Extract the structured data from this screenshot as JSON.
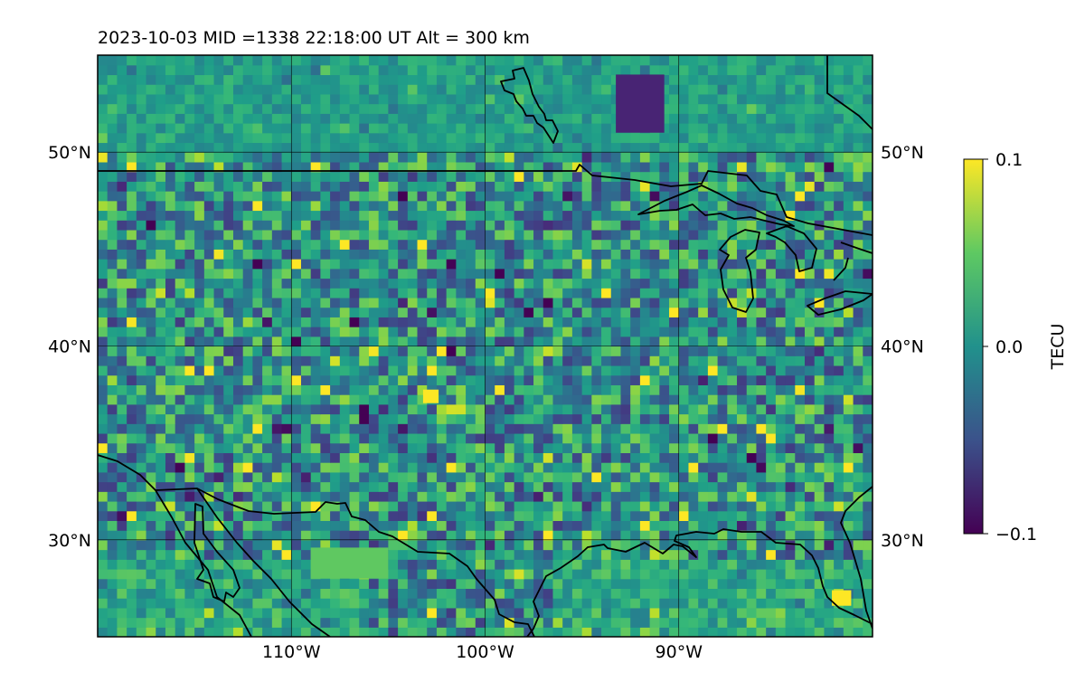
{
  "title": "2023-10-03  MID =1338    22:18:00  UT  Alt = 300 km",
  "map": {
    "lon_range": [
      -120,
      -80
    ],
    "lat_range": [
      25,
      55
    ],
    "projection": "plate-carree",
    "gridlines": true,
    "lat_ticks": [
      {
        "value": 50,
        "label": "50°N"
      },
      {
        "value": 40,
        "label": "40°N"
      },
      {
        "value": 30,
        "label": "30°N"
      }
    ],
    "lon_ticks": [
      {
        "value": -110,
        "label": "110°W"
      },
      {
        "value": -100,
        "label": "100°W"
      },
      {
        "value": -90,
        "label": "90°W"
      }
    ],
    "lat_labels_both_sides": true,
    "colormap": "viridis",
    "cell_deg": 0.5,
    "anomalies": [
      {
        "name": "dark-low-ontario",
        "lon": -92,
        "lat": 52.5,
        "w_deg": 2.5,
        "h_deg": 3,
        "value": -0.08
      },
      {
        "name": "high-kansas",
        "lon": -102.8,
        "lat": 37.4,
        "w_deg": 0.8,
        "h_deg": 0.7,
        "value": 0.1
      },
      {
        "name": "high-mexico-patch",
        "lon": -107,
        "lat": 28.8,
        "w_deg": 4,
        "h_deg": 1.6,
        "value": 0.05
      },
      {
        "name": "high-florida",
        "lon": -81.6,
        "lat": 27,
        "w_deg": 1,
        "h_deg": 0.8,
        "value": 0.1
      }
    ]
  },
  "colorbar": {
    "label": "TECU",
    "min": -0.1,
    "max": 0.1,
    "ticks": [
      {
        "value": 0.1,
        "label": "0.1"
      },
      {
        "value": 0.0,
        "label": "0.0"
      },
      {
        "value": -0.1,
        "label": "−0.1"
      }
    ]
  }
}
